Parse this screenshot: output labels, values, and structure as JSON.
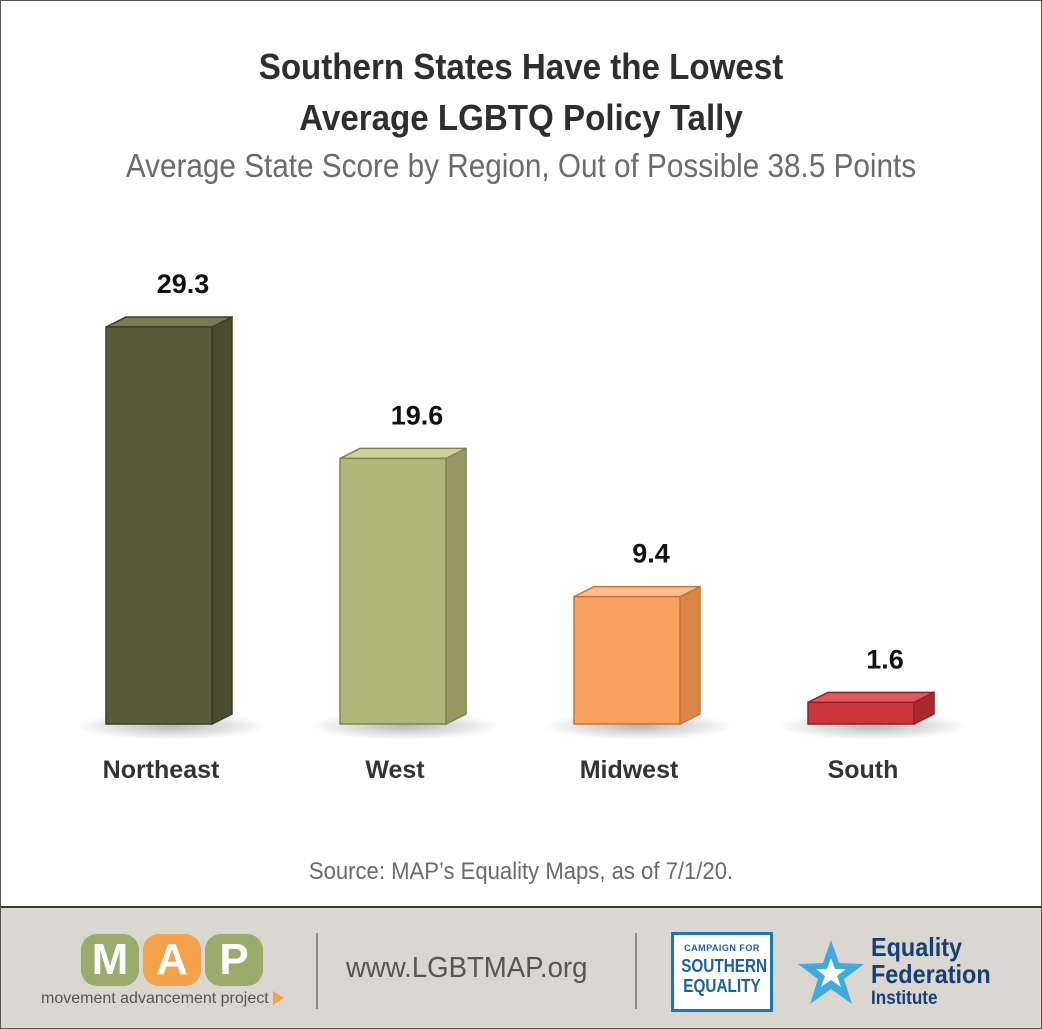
{
  "header": {
    "title_line1": "Southern States Have the Lowest",
    "title_line2": "Average LGBTQ Policy Tally",
    "subtitle": "Average State Score by Region, Out of Possible 38.5 Points"
  },
  "chart_data": {
    "type": "bar",
    "title": "Southern States Have the Lowest Average LGBTQ Policy Tally",
    "subtitle": "Average State Score by Region, Out of Possible 38.5 Points",
    "categories": [
      "Northeast",
      "West",
      "Midwest",
      "South"
    ],
    "values": [
      29.3,
      19.6,
      9.4,
      1.6
    ],
    "value_labels": [
      "29.3",
      "19.6",
      "9.4",
      "1.6"
    ],
    "colors": [
      {
        "front": "#5a5b3a",
        "top": "#7a7b55",
        "side": "#4a4b2f",
        "edge": "#3c3d26"
      },
      {
        "front": "#b1b67b",
        "top": "#d0d49c",
        "side": "#969a62",
        "edge": "#80844f"
      },
      {
        "front": "#f9a15e",
        "top": "#fcc08c",
        "side": "#db8547",
        "edge": "#c8733a"
      },
      {
        "front": "#c8353a",
        "top": "#e0585c",
        "side": "#a82a2f",
        "edge": "#8e2226"
      }
    ],
    "xlabel": "",
    "ylabel": "",
    "ylim": [
      0,
      38.5
    ],
    "grid": false,
    "legend": "none"
  },
  "source": "Source: MAP’s Equality Maps, as of 7/1/20.",
  "footer": {
    "map_letters": [
      "M",
      "A",
      "P"
    ],
    "map_letter_colors": [
      "#9aab6b",
      "#f5a04a",
      "#9aab6b"
    ],
    "map_caption": "movement advancement project",
    "website": "www.LGBTMAP.org",
    "cse_line1": "CAMPAIGN FOR",
    "cse_line2": "SOUTHERN",
    "cse_line3": "EQUALITY",
    "efi_line1": "Equality",
    "efi_line2": "Federation",
    "efi_line3": "Institute",
    "star_color": "#3fa9e0"
  }
}
